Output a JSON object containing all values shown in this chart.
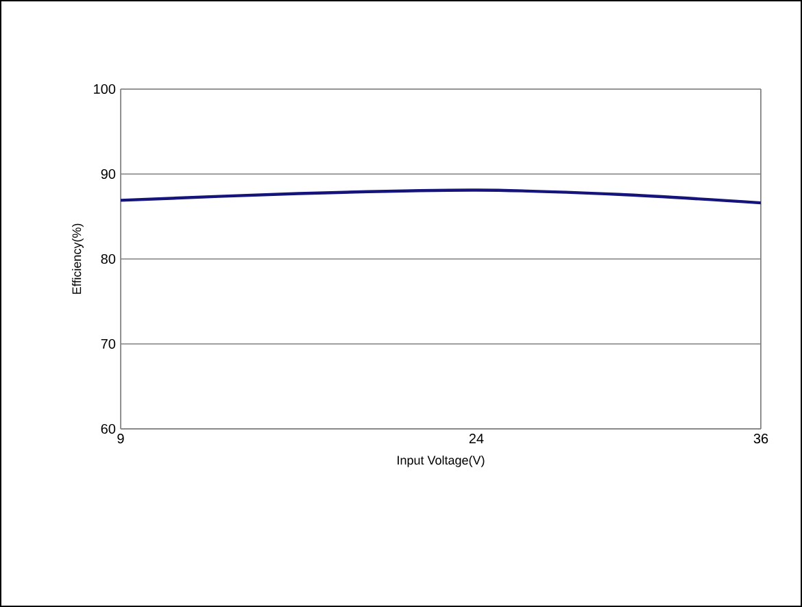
{
  "chart_data": {
    "type": "line",
    "xlabel": "Input Voltage(V)",
    "ylabel": "Efficiency(%)",
    "x": [
      9,
      16.5,
      24,
      30,
      36
    ],
    "series": [
      {
        "color": "#14147a",
        "values": [
          86.9,
          87.7,
          88.1,
          87.6,
          86.6
        ]
      }
    ],
    "xlim": [
      9,
      36
    ],
    "xticks": [
      9,
      24,
      36
    ],
    "ylim": [
      60,
      100
    ],
    "yticks": [
      60,
      70,
      80,
      90,
      100
    ],
    "grid": "y",
    "marker": "none",
    "line_style": "solid"
  }
}
